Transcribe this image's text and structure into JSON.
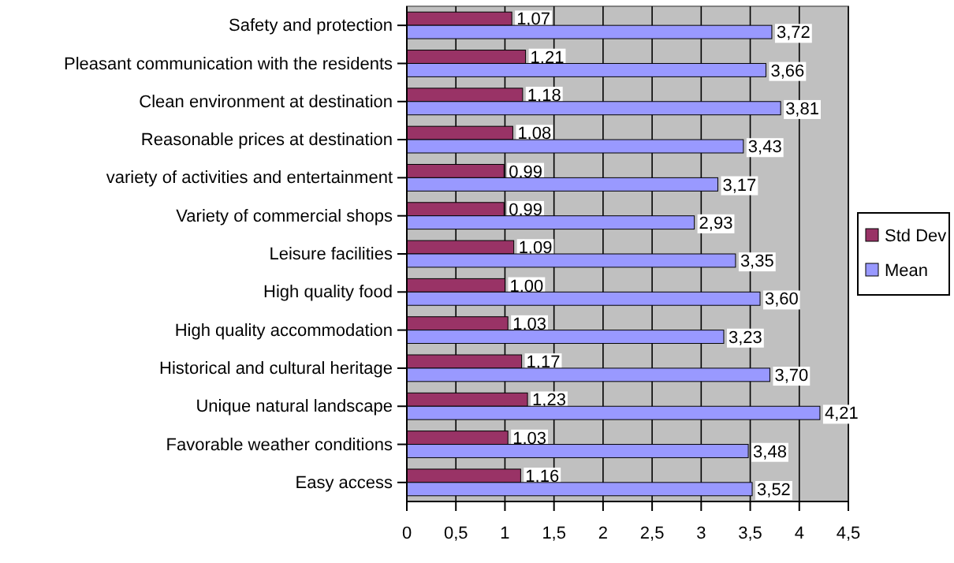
{
  "chart_data": {
    "type": "bar",
    "orientation": "horizontal",
    "categories": [
      "Safety and protection",
      "Pleasant communication with the residents",
      "Clean environment at destination",
      "Reasonable prices at destination",
      "variety of activities and entertainment",
      "Variety of commercial shops",
      "Leisure facilities",
      "High quality food",
      "High quality accommodation",
      "Historical and cultural heritage",
      "Unique natural landscape",
      "Favorable weather conditions",
      "Easy access"
    ],
    "series": [
      {
        "name": "Std Dev",
        "color": "#993366",
        "values": [
          1.07,
          1.21,
          1.18,
          1.08,
          0.99,
          0.99,
          1.09,
          1.0,
          1.03,
          1.17,
          1.23,
          1.03,
          1.16
        ],
        "value_labels": [
          "1,07",
          "1,21",
          "1,18",
          "1,08",
          "0,99",
          "0,99",
          "1,09",
          "1,00",
          "1,03",
          "1,17",
          "1,23",
          "1,03",
          "1,16"
        ]
      },
      {
        "name": "Mean",
        "color": "#9999ff",
        "values": [
          3.72,
          3.66,
          3.81,
          3.43,
          3.17,
          2.93,
          3.35,
          3.6,
          3.23,
          3.7,
          4.21,
          3.48,
          3.52
        ],
        "value_labels": [
          "3,72",
          "3,66",
          "3,81",
          "3,43",
          "3,17",
          "2,93",
          "3,35",
          "3,60",
          "3,23",
          "3,70",
          "4,21",
          "3,48",
          "3,52"
        ]
      }
    ],
    "xlim": [
      0,
      4.5
    ],
    "xticks": [
      0,
      {
        "value": 0.5,
        "label": "0,5"
      },
      1,
      {
        "value": 1.5,
        "label": "1,5"
      },
      2,
      {
        "value": 2.5,
        "label": "2,5"
      },
      3,
      {
        "value": 3.5,
        "label": "3,5"
      },
      4,
      {
        "value": 4.5,
        "label": "4,5"
      }
    ],
    "grid": "x",
    "legend": "right"
  }
}
